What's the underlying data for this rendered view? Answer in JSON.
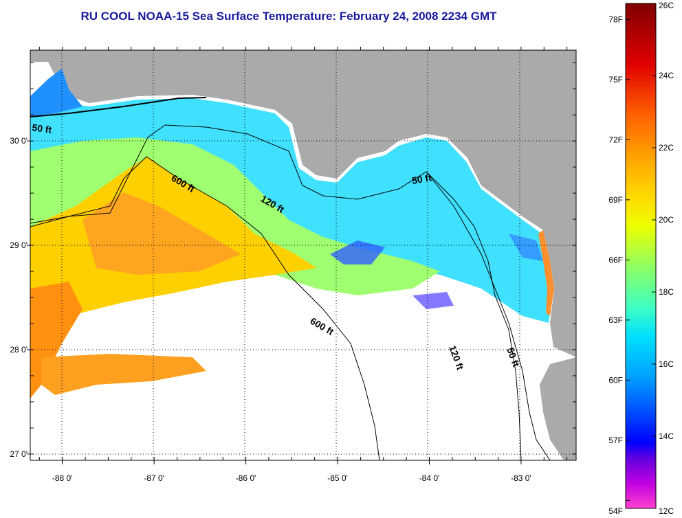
{
  "title": "RU COOL  NOAA-15  Sea Surface Temperature:  February 24, 2008 2234 GMT",
  "map": {
    "lon_range": [
      -88.35,
      -82.4
    ],
    "lat_range": [
      26.98,
      28.0
    ],
    "lat_range_full": [
      26.98,
      29.92
    ],
    "lon_ticks": [
      {
        "value": -88,
        "label": "-88 0'"
      },
      {
        "value": -87,
        "label": "-87 0'"
      },
      {
        "value": -86,
        "label": "-86 0'"
      },
      {
        "value": -85,
        "label": "-85 0'"
      },
      {
        "value": -84,
        "label": "-84 0'"
      },
      {
        "value": -83,
        "label": "-83 0'"
      }
    ],
    "lat_ticks": [
      {
        "value": 30,
        "label": "30 0'"
      },
      {
        "value": 29,
        "label": "29 0'"
      },
      {
        "value": 28,
        "label": "28 0'"
      },
      {
        "value": 27,
        "label": "27 0'"
      }
    ],
    "contour_labels": [
      {
        "text": "50 ft"
      },
      {
        "text": "600 ft"
      },
      {
        "text": "120 ft"
      },
      {
        "text": "50 ft"
      },
      {
        "text": "600 ft"
      },
      {
        "text": "120 ft"
      },
      {
        "text": "50 ft"
      }
    ],
    "land_color": "#aaaaaa",
    "cloud_color": "#ffffff"
  },
  "colorbar": {
    "celsius_ticks": [
      {
        "value": 26,
        "label": "26C"
      },
      {
        "value": 24,
        "label": "24C"
      },
      {
        "value": 22,
        "label": "22C"
      },
      {
        "value": 20,
        "label": "20C"
      },
      {
        "value": 18,
        "label": "18C"
      },
      {
        "value": 16,
        "label": "16C"
      },
      {
        "value": 14,
        "label": "14C"
      },
      {
        "value": 12,
        "label": "12C"
      }
    ],
    "fahrenheit_ticks": [
      {
        "value": 78,
        "label": "78F"
      },
      {
        "value": 75,
        "label": "75F"
      },
      {
        "value": 72,
        "label": "72F"
      },
      {
        "value": 69,
        "label": "69F"
      },
      {
        "value": 66,
        "label": "66F"
      },
      {
        "value": 63,
        "label": "63F"
      },
      {
        "value": 60,
        "label": "60F"
      },
      {
        "value": 57,
        "label": "57F"
      },
      {
        "value": 54,
        "label": "54F"
      }
    ],
    "colors": [
      "#800000",
      "#ff0000",
      "#ff8000",
      "#ffff00",
      "#80ff80",
      "#00ffff",
      "#0080ff",
      "#0000ff",
      "#8000ff",
      "#ff00ff",
      "#ff40c0"
    ]
  }
}
